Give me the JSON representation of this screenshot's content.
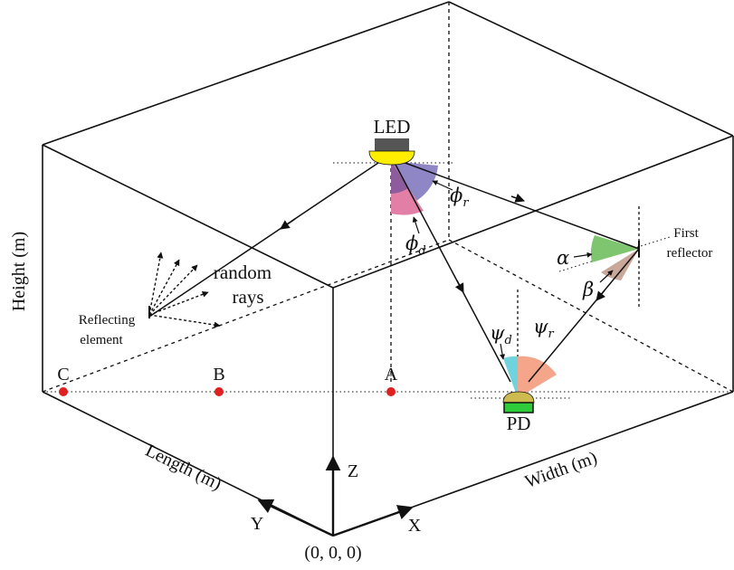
{
  "labels": {
    "led": "LED",
    "pd": "PD",
    "random_rays": [
      "random",
      "rays"
    ],
    "reflecting_element": [
      "Reflecting",
      "element"
    ],
    "first_reflector": [
      "First",
      "reflector"
    ],
    "height_axis": "Height (m)",
    "length_axis": "Length (m)",
    "width_axis": "Width (m)",
    "origin": "(0, 0, 0)",
    "axis_x": "X",
    "axis_y": "Y",
    "axis_z": "Z"
  },
  "points": [
    "A",
    "B",
    "C"
  ],
  "angles": {
    "phi_r": "ϕ",
    "phi_r_sub": "r",
    "phi_d": "ϕ",
    "phi_d_sub": "d",
    "psi_d": "ψ",
    "psi_d_sub": "d",
    "psi_r": "ψ",
    "psi_r_sub": "r",
    "alpha": "α",
    "beta": "β"
  },
  "colors": {
    "led_body": "#555555",
    "led_lens": "#ffee00",
    "phi_r_sector": "#8f86c6",
    "phi_d_sector": "#e27fa6",
    "overlap_sector": "#8e5b9c",
    "psi_d_sector": "#6fd3dd",
    "psi_r_sector": "#f4a58a",
    "alpha_sector": "#7fc46f",
    "beta_sector": "#c9a89a",
    "pd_dome": "#cdbb50",
    "pd_body": "#2ecc3a",
    "point_marker": "#e02020"
  }
}
